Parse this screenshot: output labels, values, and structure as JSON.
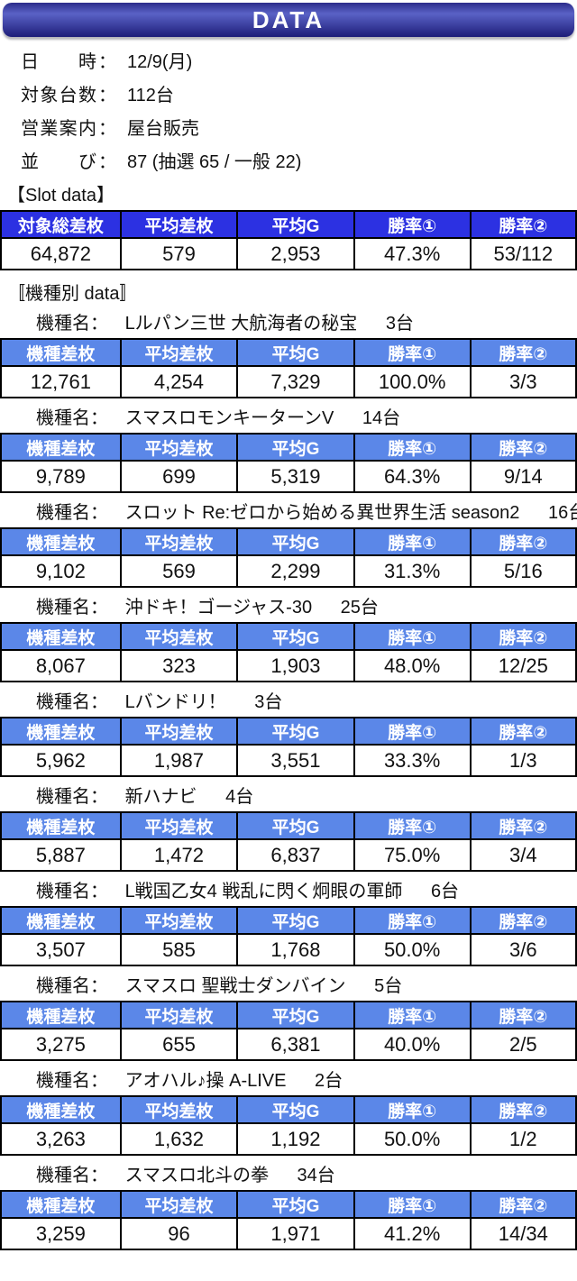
{
  "header": {
    "title": "DATA"
  },
  "info_separator": "：",
  "info": [
    {
      "label": "日　時",
      "value": "12/9(月)"
    },
    {
      "label": "対象台数",
      "value": "112台"
    },
    {
      "label": "営業案内",
      "value": "屋台販売"
    },
    {
      "label": "並　び",
      "value": "87 (抽選 65 / 一般 22)"
    }
  ],
  "slot_section": {
    "heading": "【Slot data】",
    "columns": [
      "対象総差枚",
      "平均差枚",
      "平均G",
      "勝率①",
      "勝率②"
    ],
    "values": [
      "64,872",
      "579",
      "2,953",
      "47.3%",
      "53/112"
    ]
  },
  "machine_section": {
    "heading": "〚機種別 data〛",
    "name_label": "機種名：",
    "columns": [
      "機種差枚",
      "平均差枚",
      "平均G",
      "勝率①",
      "勝率②"
    ],
    "machines": [
      {
        "name": "Lルパン三世 大航海者の秘宝",
        "units": "3台",
        "values": [
          "12,761",
          "4,254",
          "7,329",
          "100.0%",
          "3/3"
        ]
      },
      {
        "name": "スマスロモンキーターンV",
        "units": "14台",
        "values": [
          "9,789",
          "699",
          "5,319",
          "64.3%",
          "9/14"
        ]
      },
      {
        "name": "スロット Re:ゼロから始める異世界生活 season2",
        "units": "16台",
        "values": [
          "9,102",
          "569",
          "2,299",
          "31.3%",
          "5/16"
        ]
      },
      {
        "name": "沖ドキ！ゴージャス-30",
        "units": "25台",
        "values": [
          "8,067",
          "323",
          "1,903",
          "48.0%",
          "12/25"
        ]
      },
      {
        "name": "Lバンドリ！",
        "units": "3台",
        "values": [
          "5,962",
          "1,987",
          "3,551",
          "33.3%",
          "1/3"
        ]
      },
      {
        "name": "新ハナビ",
        "units": "4台",
        "values": [
          "5,887",
          "1,472",
          "6,837",
          "75.0%",
          "3/4"
        ]
      },
      {
        "name": "L戦国乙女4 戦乱に閃く炯眼の軍師",
        "units": "6台",
        "values": [
          "3,507",
          "585",
          "1,768",
          "50.0%",
          "3/6"
        ]
      },
      {
        "name": "スマスロ 聖戦士ダンバイン",
        "units": "5台",
        "values": [
          "3,275",
          "655",
          "6,381",
          "40.0%",
          "2/5"
        ]
      },
      {
        "name": "アオハル♪操 A-LIVE",
        "units": "2台",
        "values": [
          "3,263",
          "1,632",
          "1,192",
          "50.0%",
          "1/2"
        ]
      },
      {
        "name": "スマスロ北斗の拳",
        "units": "34台",
        "values": [
          "3,259",
          "96",
          "1,971",
          "41.2%",
          "14/34"
        ]
      }
    ]
  },
  "colors": {
    "title_bar_gradient_top": "#2b2b8a",
    "title_bar_gradient_mid": "#5a62c6",
    "title_bar_gradient_bottom": "#1d1d78",
    "slot_header_bg": "#2c31e2",
    "machine_header_bg": "#5b87e8",
    "header_text": "#ffffff",
    "table_border": "#000000"
  }
}
